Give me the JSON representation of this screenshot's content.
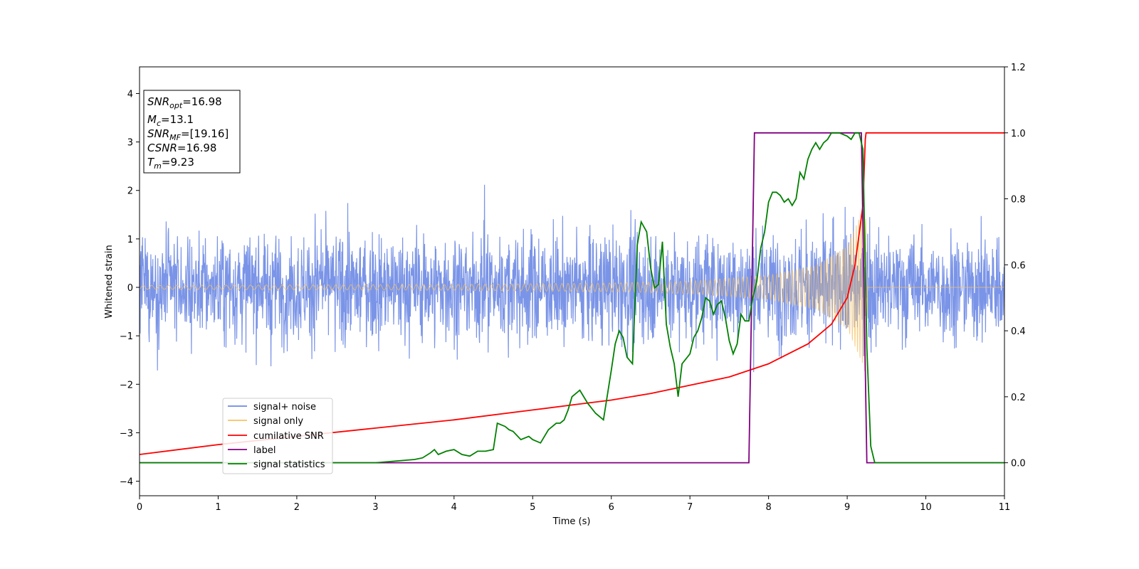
{
  "chart_data": {
    "type": "line",
    "xlabel": "Time (s)",
    "ylabel": "Whitened strain",
    "xlim": [
      0,
      11
    ],
    "ylim_left": [
      -4.3,
      4.55
    ],
    "ylim_right": [
      -0.1,
      1.2
    ],
    "x_ticks": [
      "0",
      "1",
      "2",
      "3",
      "4",
      "5",
      "6",
      "7",
      "8",
      "9",
      "10",
      "11"
    ],
    "y_ticks_left": [
      "−4",
      "−3",
      "−2",
      "−1",
      "0",
      "1",
      "2",
      "3",
      "4"
    ],
    "y_ticks_right": [
      "0.0",
      "0.2",
      "0.4",
      "0.6",
      "0.8",
      "1.0",
      "1.2"
    ],
    "grid": false,
    "legend_position": "lower-left",
    "series": [
      {
        "name": "signal+ noise",
        "color": "#6b88e4",
        "axis": "left",
        "description": "whitened detector data, approximately gaussian noise",
        "x": [
          0,
          11
        ],
        "approx_envelope": [
          -2.5,
          2.5
        ],
        "approx_std": 0.78
      },
      {
        "name": "signal only",
        "color": "#f5c266",
        "axis": "left",
        "description": "chirp waveform, amplitude grows until merger",
        "amplitude_points": [
          [
            0,
            0.04
          ],
          [
            4,
            0.06
          ],
          [
            6,
            0.09
          ],
          [
            7,
            0.13
          ],
          [
            8,
            0.25
          ],
          [
            8.6,
            0.45
          ],
          [
            9.0,
            0.85
          ],
          [
            9.2,
            1.6
          ],
          [
            9.23,
            1.8
          ],
          [
            9.26,
            0.0
          ]
        ],
        "merger_time": 9.23
      },
      {
        "name": "cumilative SNR",
        "color": "#ff0000",
        "axis": "right",
        "x": [
          0,
          1,
          2,
          3,
          4,
          5,
          5.5,
          6,
          6.5,
          7,
          7.5,
          8,
          8.5,
          8.8,
          9.0,
          9.1,
          9.2,
          9.23,
          9.24,
          11
        ],
        "y": [
          0.025,
          0.055,
          0.08,
          0.105,
          0.13,
          0.16,
          0.175,
          0.19,
          0.21,
          0.235,
          0.26,
          0.3,
          0.36,
          0.42,
          0.5,
          0.6,
          0.78,
          0.98,
          1.0,
          1.0
        ]
      },
      {
        "name": "label",
        "color": "#800080",
        "axis": "right",
        "x": [
          0,
          7.75,
          7.82,
          9.18,
          9.25,
          11
        ],
        "y": [
          0,
          0,
          1,
          1,
          0,
          0
        ]
      },
      {
        "name": "signal statistics",
        "color": "#008000",
        "axis": "right",
        "x": [
          0,
          2.5,
          3.0,
          3.5,
          3.6,
          3.7,
          3.75,
          3.8,
          3.9,
          4.0,
          4.1,
          4.2,
          4.3,
          4.4,
          4.5,
          4.55,
          4.65,
          4.7,
          4.75,
          4.85,
          4.95,
          5.0,
          5.1,
          5.2,
          5.3,
          5.35,
          5.4,
          5.45,
          5.5,
          5.55,
          5.6,
          5.7,
          5.8,
          5.9,
          6.0,
          6.05,
          6.1,
          6.15,
          6.2,
          6.27,
          6.33,
          6.38,
          6.45,
          6.5,
          6.55,
          6.6,
          6.65,
          6.7,
          6.75,
          6.8,
          6.85,
          6.9,
          7.0,
          7.05,
          7.1,
          7.15,
          7.2,
          7.25,
          7.3,
          7.35,
          7.4,
          7.45,
          7.5,
          7.55,
          7.6,
          7.65,
          7.7,
          7.75,
          7.8,
          7.85,
          7.9,
          7.95,
          8.0,
          8.05,
          8.1,
          8.15,
          8.2,
          8.25,
          8.3,
          8.35,
          8.4,
          8.45,
          8.5,
          8.55,
          8.6,
          8.65,
          8.7,
          8.75,
          8.8,
          8.9,
          9.0,
          9.05,
          9.1,
          9.15,
          9.2,
          9.25,
          9.3,
          9.35,
          11
        ],
        "y": [
          0.0,
          0.0,
          0.0,
          0.01,
          0.015,
          0.03,
          0.04,
          0.025,
          0.035,
          0.04,
          0.025,
          0.02,
          0.035,
          0.035,
          0.04,
          0.12,
          0.11,
          0.1,
          0.095,
          0.07,
          0.08,
          0.07,
          0.06,
          0.1,
          0.12,
          0.12,
          0.13,
          0.16,
          0.2,
          0.21,
          0.22,
          0.18,
          0.15,
          0.13,
          0.28,
          0.36,
          0.4,
          0.38,
          0.32,
          0.3,
          0.66,
          0.73,
          0.7,
          0.59,
          0.53,
          0.54,
          0.67,
          0.42,
          0.35,
          0.3,
          0.2,
          0.3,
          0.33,
          0.38,
          0.4,
          0.44,
          0.5,
          0.49,
          0.45,
          0.48,
          0.49,
          0.44,
          0.37,
          0.33,
          0.36,
          0.45,
          0.43,
          0.43,
          0.5,
          0.55,
          0.65,
          0.7,
          0.79,
          0.82,
          0.82,
          0.81,
          0.79,
          0.8,
          0.78,
          0.8,
          0.88,
          0.86,
          0.92,
          0.95,
          0.97,
          0.95,
          0.97,
          0.98,
          1.0,
          1.0,
          0.99,
          0.98,
          1.0,
          1.0,
          0.95,
          0.35,
          0.05,
          0.0,
          0.0
        ]
      }
    ]
  },
  "annotation": {
    "snr_opt": {
      "sym": "SNR",
      "sub": "opt",
      "value": "=16.98"
    },
    "mc": {
      "sym": "M",
      "sub": "c",
      "value": "=13.1"
    },
    "snr_mf": {
      "sym": "SNR",
      "sub": "MF",
      "value": "=[19.16]"
    },
    "csnr": {
      "sym": "CSNR",
      "value": "=16.98"
    },
    "tm": {
      "sym": "T",
      "sub": "m",
      "value": "=9.23"
    }
  }
}
